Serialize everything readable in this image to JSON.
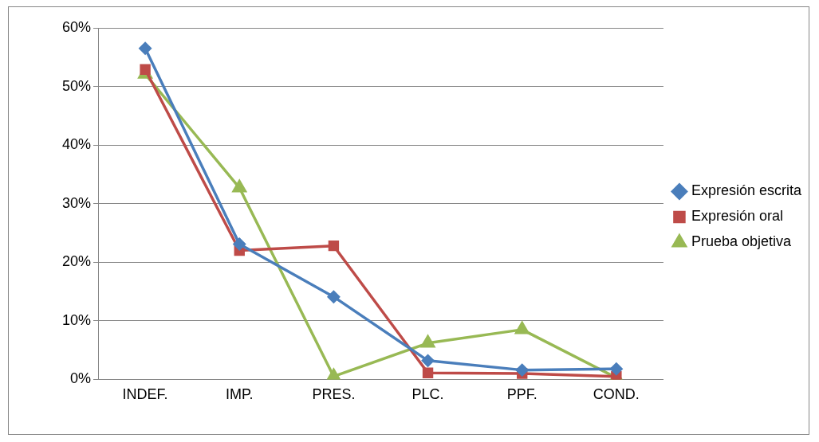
{
  "chart_data": {
    "type": "line",
    "categories": [
      "INDEF.",
      "IMP.",
      "PRES.",
      "PLC.",
      "PPF.",
      "COND."
    ],
    "series": [
      {
        "name": "Expresión escrita",
        "color": "#4a7ebb",
        "marker": "diamond",
        "values": [
          56.5,
          23.1,
          14.1,
          3.2,
          1.6,
          1.8
        ]
      },
      {
        "name": "Expresión oral",
        "color": "#be4b48",
        "marker": "square",
        "values": [
          52.9,
          22.0,
          22.8,
          1.1,
          1.0,
          0.5
        ]
      },
      {
        "name": "Prueba objetiva",
        "color": "#98b954",
        "marker": "triangle",
        "values": [
          52.1,
          32.7,
          0.5,
          6.2,
          8.5,
          0.3
        ]
      }
    ],
    "ylim": [
      0,
      60
    ],
    "yticks": [
      {
        "value": 0,
        "label": "0%"
      },
      {
        "value": 10,
        "label": "10%"
      },
      {
        "value": 20,
        "label": "20%"
      },
      {
        "value": 30,
        "label": "30%"
      },
      {
        "value": 40,
        "label": "40%"
      },
      {
        "value": 50,
        "label": "50%"
      },
      {
        "value": 60,
        "label": "60%"
      }
    ],
    "grid": "y",
    "legend": "right",
    "line_style": "solid"
  }
}
